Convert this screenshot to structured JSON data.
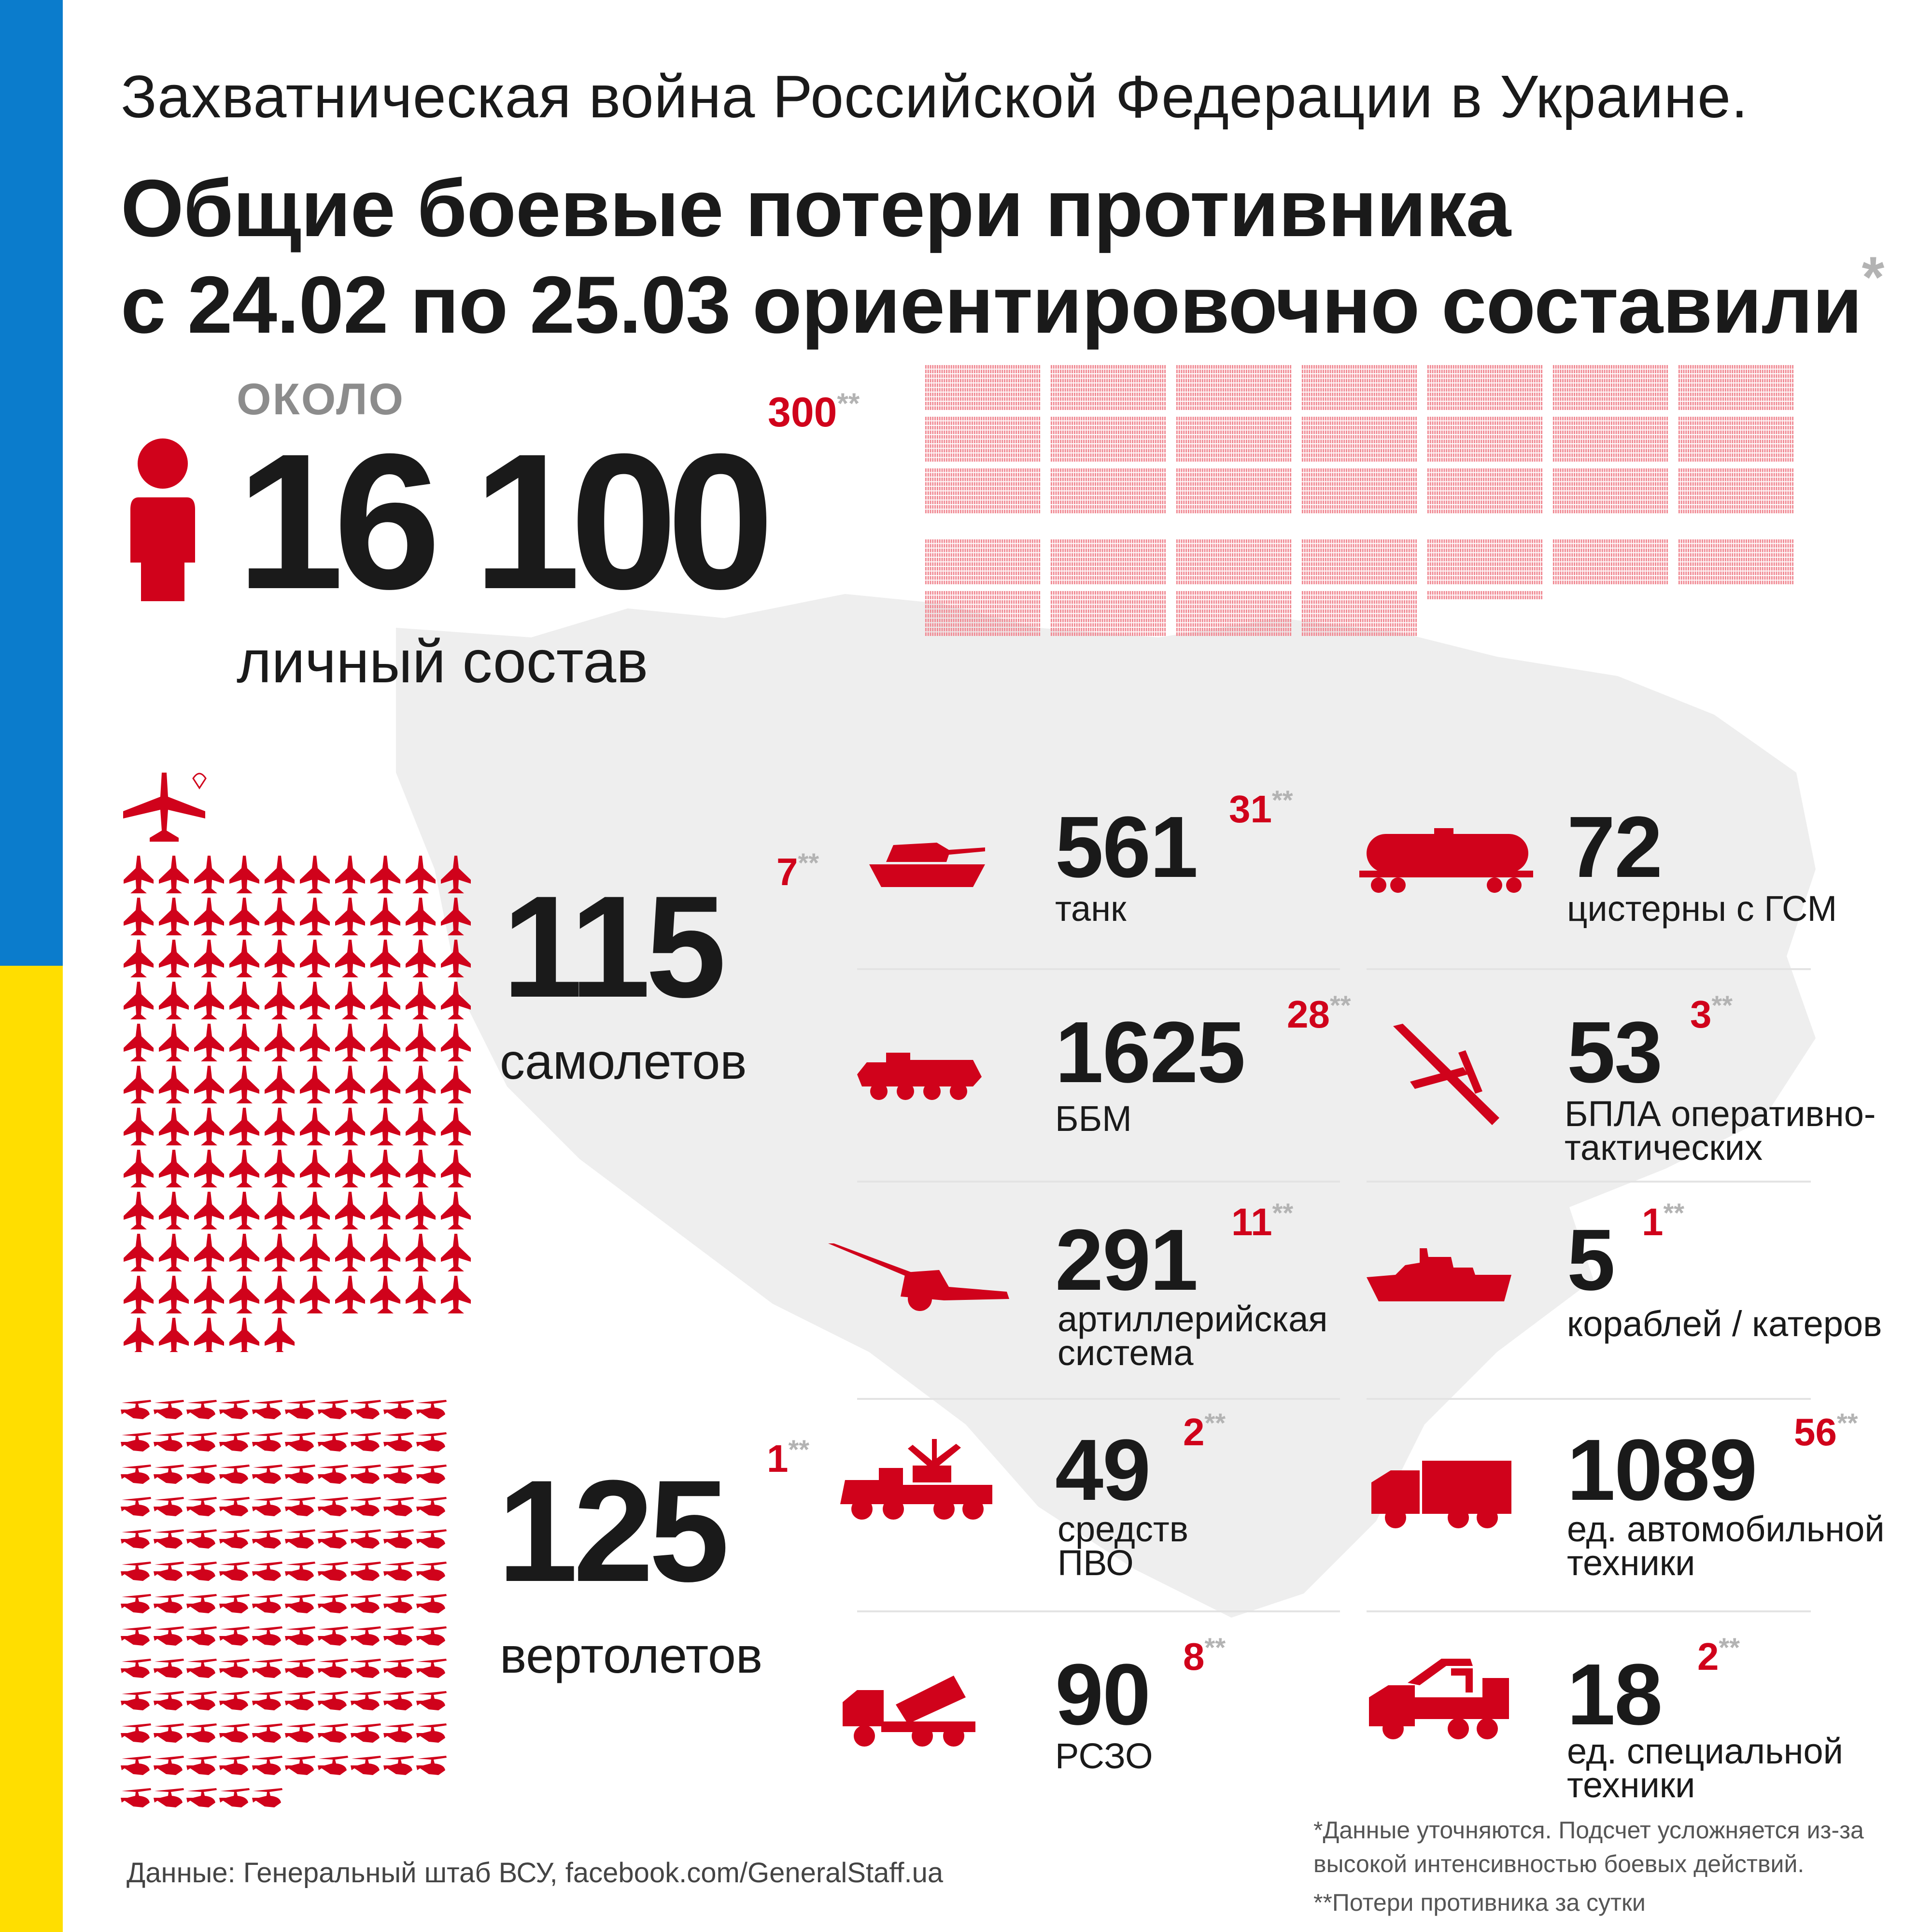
{
  "header": {
    "subtitle": "Захватническая война Российской Федерации в Украине.",
    "title_line1": "Общие боевые потери противника",
    "title_line2": "с 24.02 по 25.03 ориентировочно составили",
    "title_star": "*"
  },
  "personnel": {
    "prefix": "ОКОЛО",
    "value": "16 100",
    "label": "личный состав",
    "daily": "300",
    "daily_mark": "**",
    "icons_total": 16100
  },
  "aircraft": {
    "value": "115",
    "label": "самолетов",
    "daily": "7",
    "daily_mark": "**",
    "icons_total": 115
  },
  "helicopters": {
    "value": "125",
    "label": "вертолетов",
    "daily": "1",
    "daily_mark": "**",
    "icons_total": 125
  },
  "stats": {
    "tanks": {
      "value": "561",
      "label": "танк",
      "daily": "31",
      "daily_mark": "**",
      "icon": "tank-icon"
    },
    "fuel": {
      "value": "72",
      "label": "цистерны с ГСМ",
      "daily": "",
      "daily_mark": "",
      "icon": "fuel-tanker-icon"
    },
    "bbm": {
      "value": "1625",
      "label": "ББМ",
      "daily": "28",
      "daily_mark": "**",
      "icon": "armored-vehicle-icon"
    },
    "uav": {
      "value": "53",
      "label_line1": "БПЛА оперативно-",
      "label_line2": "тактических",
      "daily": "3",
      "daily_mark": "**",
      "icon": "drone-icon"
    },
    "artillery": {
      "value": "291",
      "label_line1": "артиллерийская",
      "label_line2": "система",
      "daily": "11",
      "daily_mark": "**",
      "icon": "howitzer-icon"
    },
    "ships": {
      "value": "5",
      "label": "кораблей / катеров",
      "daily": "1",
      "daily_mark": "**",
      "icon": "ship-icon"
    },
    "air_defense": {
      "value": "49",
      "label_line1": "средств",
      "label_line2": "ПВО",
      "daily": "2",
      "daily_mark": "**",
      "icon": "air-defense-icon"
    },
    "vehicles": {
      "value": "1089",
      "label_line1": "ед. автомобильной",
      "label_line2": "техники",
      "daily": "56",
      "daily_mark": "**",
      "icon": "truck-icon"
    },
    "mlrs": {
      "value": "90",
      "label": "РСЗО",
      "daily": "8",
      "daily_mark": "**",
      "icon": "mlrs-icon"
    },
    "special": {
      "value": "18",
      "label_line1": "ед. специальной",
      "label_line2": "техники",
      "daily": "2",
      "daily_mark": "**",
      "icon": "special-vehicle-icon"
    }
  },
  "footer": {
    "source": "Данные: Генеральный штаб ВСУ, facebook.com/GeneralStaff.ua",
    "note1_line1": "*Данные уточняются. Подсчет усложняется из-за",
    "note1_line2": "высокой интенсивностью боевых действий.",
    "note2": "**Потери противника за сутки"
  },
  "colors": {
    "accent": "#d0021b",
    "blue": "#0b7ccc",
    "yellow": "#ffde00",
    "text": "#1a1a1a",
    "muted": "#b3b3b3",
    "map": "#eeeeee"
  }
}
